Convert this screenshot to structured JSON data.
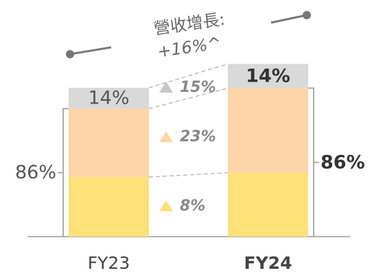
{
  "chart_data": {
    "type": "stacked_bar",
    "categories": [
      "FY23",
      "FY24"
    ],
    "series": [
      {
        "color": "#ffe17a",
        "values": [
          40,
          37
        ]
      },
      {
        "color": "#fdd5a8",
        "values": [
          46,
          49
        ]
      },
      {
        "color": "#d9d9d9",
        "values": [
          14,
          14
        ],
        "value_labels": [
          "14%",
          "14%"
        ]
      }
    ],
    "subtotals": [
      {
        "value": 86,
        "label": "86%"
      },
      {
        "value": 86,
        "label": "86%"
      }
    ],
    "growth_title": "營收增長:",
    "growth": {
      "value": 16,
      "label": "+16%^"
    },
    "segment_growth": {
      "values": [
        8,
        23,
        15
      ],
      "value_labels": [
        "8%",
        "23%",
        "15%"
      ]
    }
  }
}
